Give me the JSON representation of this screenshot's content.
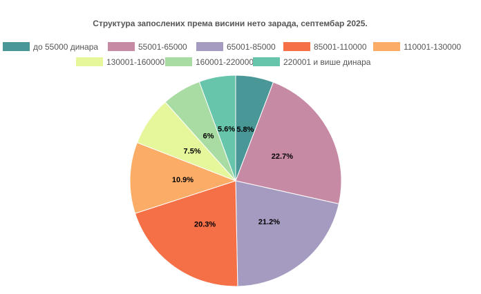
{
  "chart_data": {
    "type": "pie",
    "title": "Структура запослених према висини нето зарада, септембар 2025.",
    "categories": [
      "до 55000  динара",
      "55001-65000",
      "65001-85000",
      "85001-110000",
      "110001-130000",
      "130001-160000",
      "160001-220000",
      "220001 и више динара"
    ],
    "values": [
      5.8,
      22.7,
      21.2,
      20.3,
      10.9,
      7.5,
      6.0,
      5.6
    ],
    "labels": [
      "5.8%",
      "22.7%",
      "21.2%",
      "20.3%",
      "10.9%",
      "7.5%",
      "6%",
      "5.6%"
    ],
    "colors": [
      "#4a9797",
      "#c78aa4",
      "#a59ac0",
      "#f56f47",
      "#fbad67",
      "#e6f69b",
      "#a8dca2",
      "#66c5aa"
    ],
    "start_angle": "12 o'clock",
    "direction": "clockwise",
    "legend_position": "top"
  }
}
